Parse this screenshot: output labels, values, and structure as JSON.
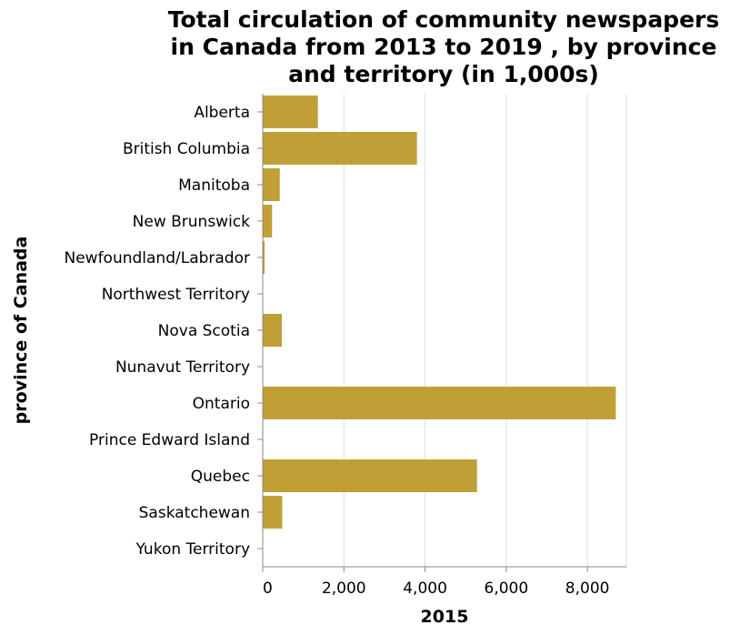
{
  "chart_data": {
    "type": "bar",
    "orientation": "horizontal",
    "title": [
      "Total circulation of community newspapers",
      "in Canada from 2013 to 2019 , by province",
      "and territory (in 1,000s)"
    ],
    "xlabel": "2015",
    "ylabel": "province of Canada",
    "categories": [
      "Alberta",
      "British Columbia",
      "Manitoba",
      "New Brunswick",
      "Newfoundland/Labrador",
      "Northwest Territory",
      "Nova Scotia",
      "Nunavut Territory",
      "Ontario",
      "Prince Edward Island",
      "Quebec",
      "Saskatchewan",
      "Yukon Territory"
    ],
    "values": [
      1360,
      3800,
      420,
      230,
      45,
      8,
      470,
      5,
      8700,
      12,
      5280,
      480,
      6
    ],
    "xlim": [
      0,
      8960
    ],
    "xticks": [
      0,
      2000,
      4000,
      6000,
      8000
    ],
    "xtick_labels": [
      "0",
      "2,000",
      "4,000",
      "6,000",
      "8,000"
    ],
    "grid": true,
    "colors": {
      "bar": "#c09f37"
    }
  }
}
